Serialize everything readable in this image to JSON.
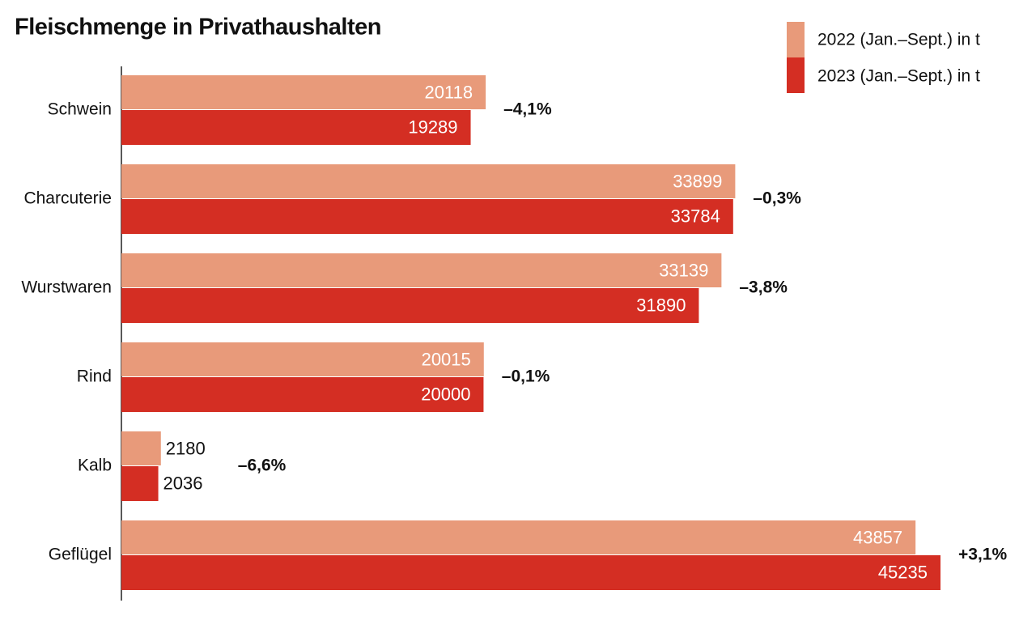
{
  "chart_data": {
    "type": "bar",
    "orientation": "horizontal",
    "title": "Fleischmenge in Privathaushalten",
    "categories": [
      "Schwein",
      "Charcuterie",
      "Wurstwaren",
      "Rind",
      "Kalb",
      "Geflügel"
    ],
    "series": [
      {
        "name": "2022 (Jan.–Sept.) in t",
        "color": "#e89a7a",
        "values": [
          20118,
          33899,
          33139,
          20015,
          2180,
          43857
        ]
      },
      {
        "name": "2023 (Jan.–Sept.) in t",
        "color": "#d42e23",
        "values": [
          19289,
          33784,
          31890,
          20000,
          2036,
          45235
        ]
      }
    ],
    "annotations": [
      "–4,1%",
      "–0,3%",
      "–3,8%",
      "–0,1%",
      "–6,6%",
      "+3,1%"
    ],
    "legend": "top-right"
  }
}
